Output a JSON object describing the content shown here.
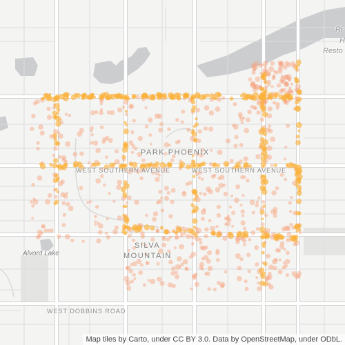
{
  "map": {
    "street_labels": {
      "park_phoenix": "PARK PHOENIX",
      "west_southern_1": "WEST SOUTHERN AVENUE",
      "west_southern_2": "WEST SOUTHERN AVENUE",
      "silva_mountain_line1": "SILVA",
      "silva_mountain_line2": "MOUNTAIN",
      "alvord_lake": "Alvord Lake",
      "west_dobbins": "WEST DOBBINS ROAD",
      "edge_ri": "Ri",
      "edge_h": "H",
      "edge_resto": "Resto"
    },
    "attribution": "Map tiles by Carto, under CC BY 3.0. Data by OpenStreetMap, under ODbL.",
    "colors": {
      "background": "#f4f4f2",
      "major_road": "#ffffff",
      "road_casing": "#d6d6d6",
      "water": "#c7c9cc",
      "park": "#e6e7e4",
      "point_light": "#f7a07a",
      "point_dense": "#fbb03b"
    }
  }
}
